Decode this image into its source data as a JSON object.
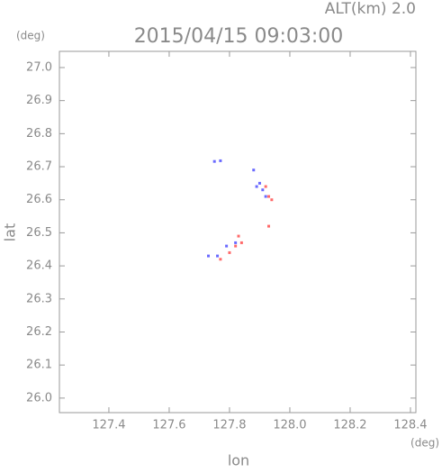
{
  "chart_data": {
    "type": "scatter",
    "title": "2015/04/15 09:03:00",
    "subtitle": "ALT(km) 2.0",
    "x_label": "lon",
    "y_label": "lat",
    "x_unit": "(deg)",
    "y_unit": "(deg)",
    "xlim": [
      127.236,
      128.418
    ],
    "ylim": [
      25.956,
      27.049
    ],
    "xticks": [
      127.4,
      127.6,
      127.8,
      {
        "value": 128,
        "label": "128.0"
      },
      128.2,
      128.4
    ],
    "yticks": [
      {
        "value": 26,
        "label": "26.0"
      },
      26.1,
      26.2,
      26.3,
      26.4,
      26.5,
      26.6,
      26.7,
      26.8,
      26.9,
      {
        "value": 27,
        "label": "27.0"
      }
    ],
    "series": [
      {
        "color": "#6a6aff",
        "x": [
          127.75,
          127.77,
          127.9,
          127.91,
          127.89,
          127.92,
          127.73,
          127.76,
          127.79,
          127.82,
          127.88
        ],
        "y": [
          26.716,
          26.718,
          26.65,
          26.63,
          26.64,
          26.61,
          26.43,
          26.43,
          26.46,
          26.47,
          26.69
        ]
      },
      {
        "color": "#ff6a6a",
        "x": [
          127.93,
          127.94,
          127.92,
          127.84,
          127.82,
          127.77,
          127.8,
          127.93,
          127.83
        ],
        "y": [
          26.61,
          26.6,
          26.64,
          26.47,
          26.46,
          26.42,
          26.44,
          26.52,
          26.49
        ]
      }
    ]
  }
}
